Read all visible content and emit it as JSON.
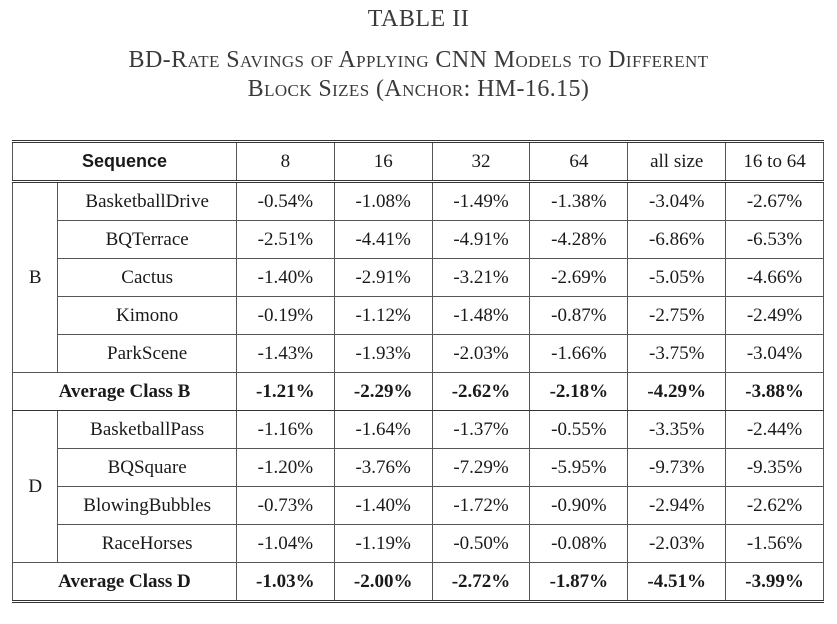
{
  "caption": {
    "label": "TABLE II",
    "title_line1": "BD-Rate Savings of Applying CNN Models to Different",
    "title_line2": "Block Sizes (Anchor: HM-16.15)"
  },
  "table": {
    "header": {
      "sequence": "Sequence",
      "columns": [
        "8",
        "16",
        "32",
        "64",
        "all size",
        "16 to 64"
      ]
    },
    "groups": [
      {
        "class": "B",
        "rows": [
          {
            "name": "BasketballDrive",
            "values": [
              "-0.54%",
              "-1.08%",
              "-1.49%",
              "-1.38%",
              "-3.04%",
              "-2.67%"
            ]
          },
          {
            "name": "BQTerrace",
            "values": [
              "-2.51%",
              "-4.41%",
              "-4.91%",
              "-4.28%",
              "-6.86%",
              "-6.53%"
            ]
          },
          {
            "name": "Cactus",
            "values": [
              "-1.40%",
              "-2.91%",
              "-3.21%",
              "-2.69%",
              "-5.05%",
              "-4.66%"
            ]
          },
          {
            "name": "Kimono",
            "values": [
              "-0.19%",
              "-1.12%",
              "-1.48%",
              "-0.87%",
              "-2.75%",
              "-2.49%"
            ]
          },
          {
            "name": "ParkScene",
            "values": [
              "-1.43%",
              "-1.93%",
              "-2.03%",
              "-1.66%",
              "-3.75%",
              "-3.04%"
            ]
          }
        ],
        "average": {
          "label": "Average Class B",
          "values": [
            "-1.21%",
            "-2.29%",
            "-2.62%",
            "-2.18%",
            "-4.29%",
            "-3.88%"
          ]
        }
      },
      {
        "class": "D",
        "rows": [
          {
            "name": "BasketballPass",
            "values": [
              "-1.16%",
              "-1.64%",
              "-1.37%",
              "-0.55%",
              "-3.35%",
              "-2.44%"
            ]
          },
          {
            "name": "BQSquare",
            "values": [
              "-1.20%",
              "-3.76%",
              "-7.29%",
              "-5.95%",
              "-9.73%",
              "-9.35%"
            ]
          },
          {
            "name": "BlowingBubbles",
            "values": [
              "-0.73%",
              "-1.40%",
              "-1.72%",
              "-0.90%",
              "-2.94%",
              "-2.62%"
            ]
          },
          {
            "name": "RaceHorses",
            "values": [
              "-1.04%",
              "-1.19%",
              "-0.50%",
              "-0.08%",
              "-2.03%",
              "-1.56%"
            ]
          }
        ],
        "average": {
          "label": "Average Class D",
          "values": [
            "-1.03%",
            "-2.00%",
            "-2.72%",
            "-1.87%",
            "-4.51%",
            "-3.99%"
          ]
        }
      }
    ]
  }
}
